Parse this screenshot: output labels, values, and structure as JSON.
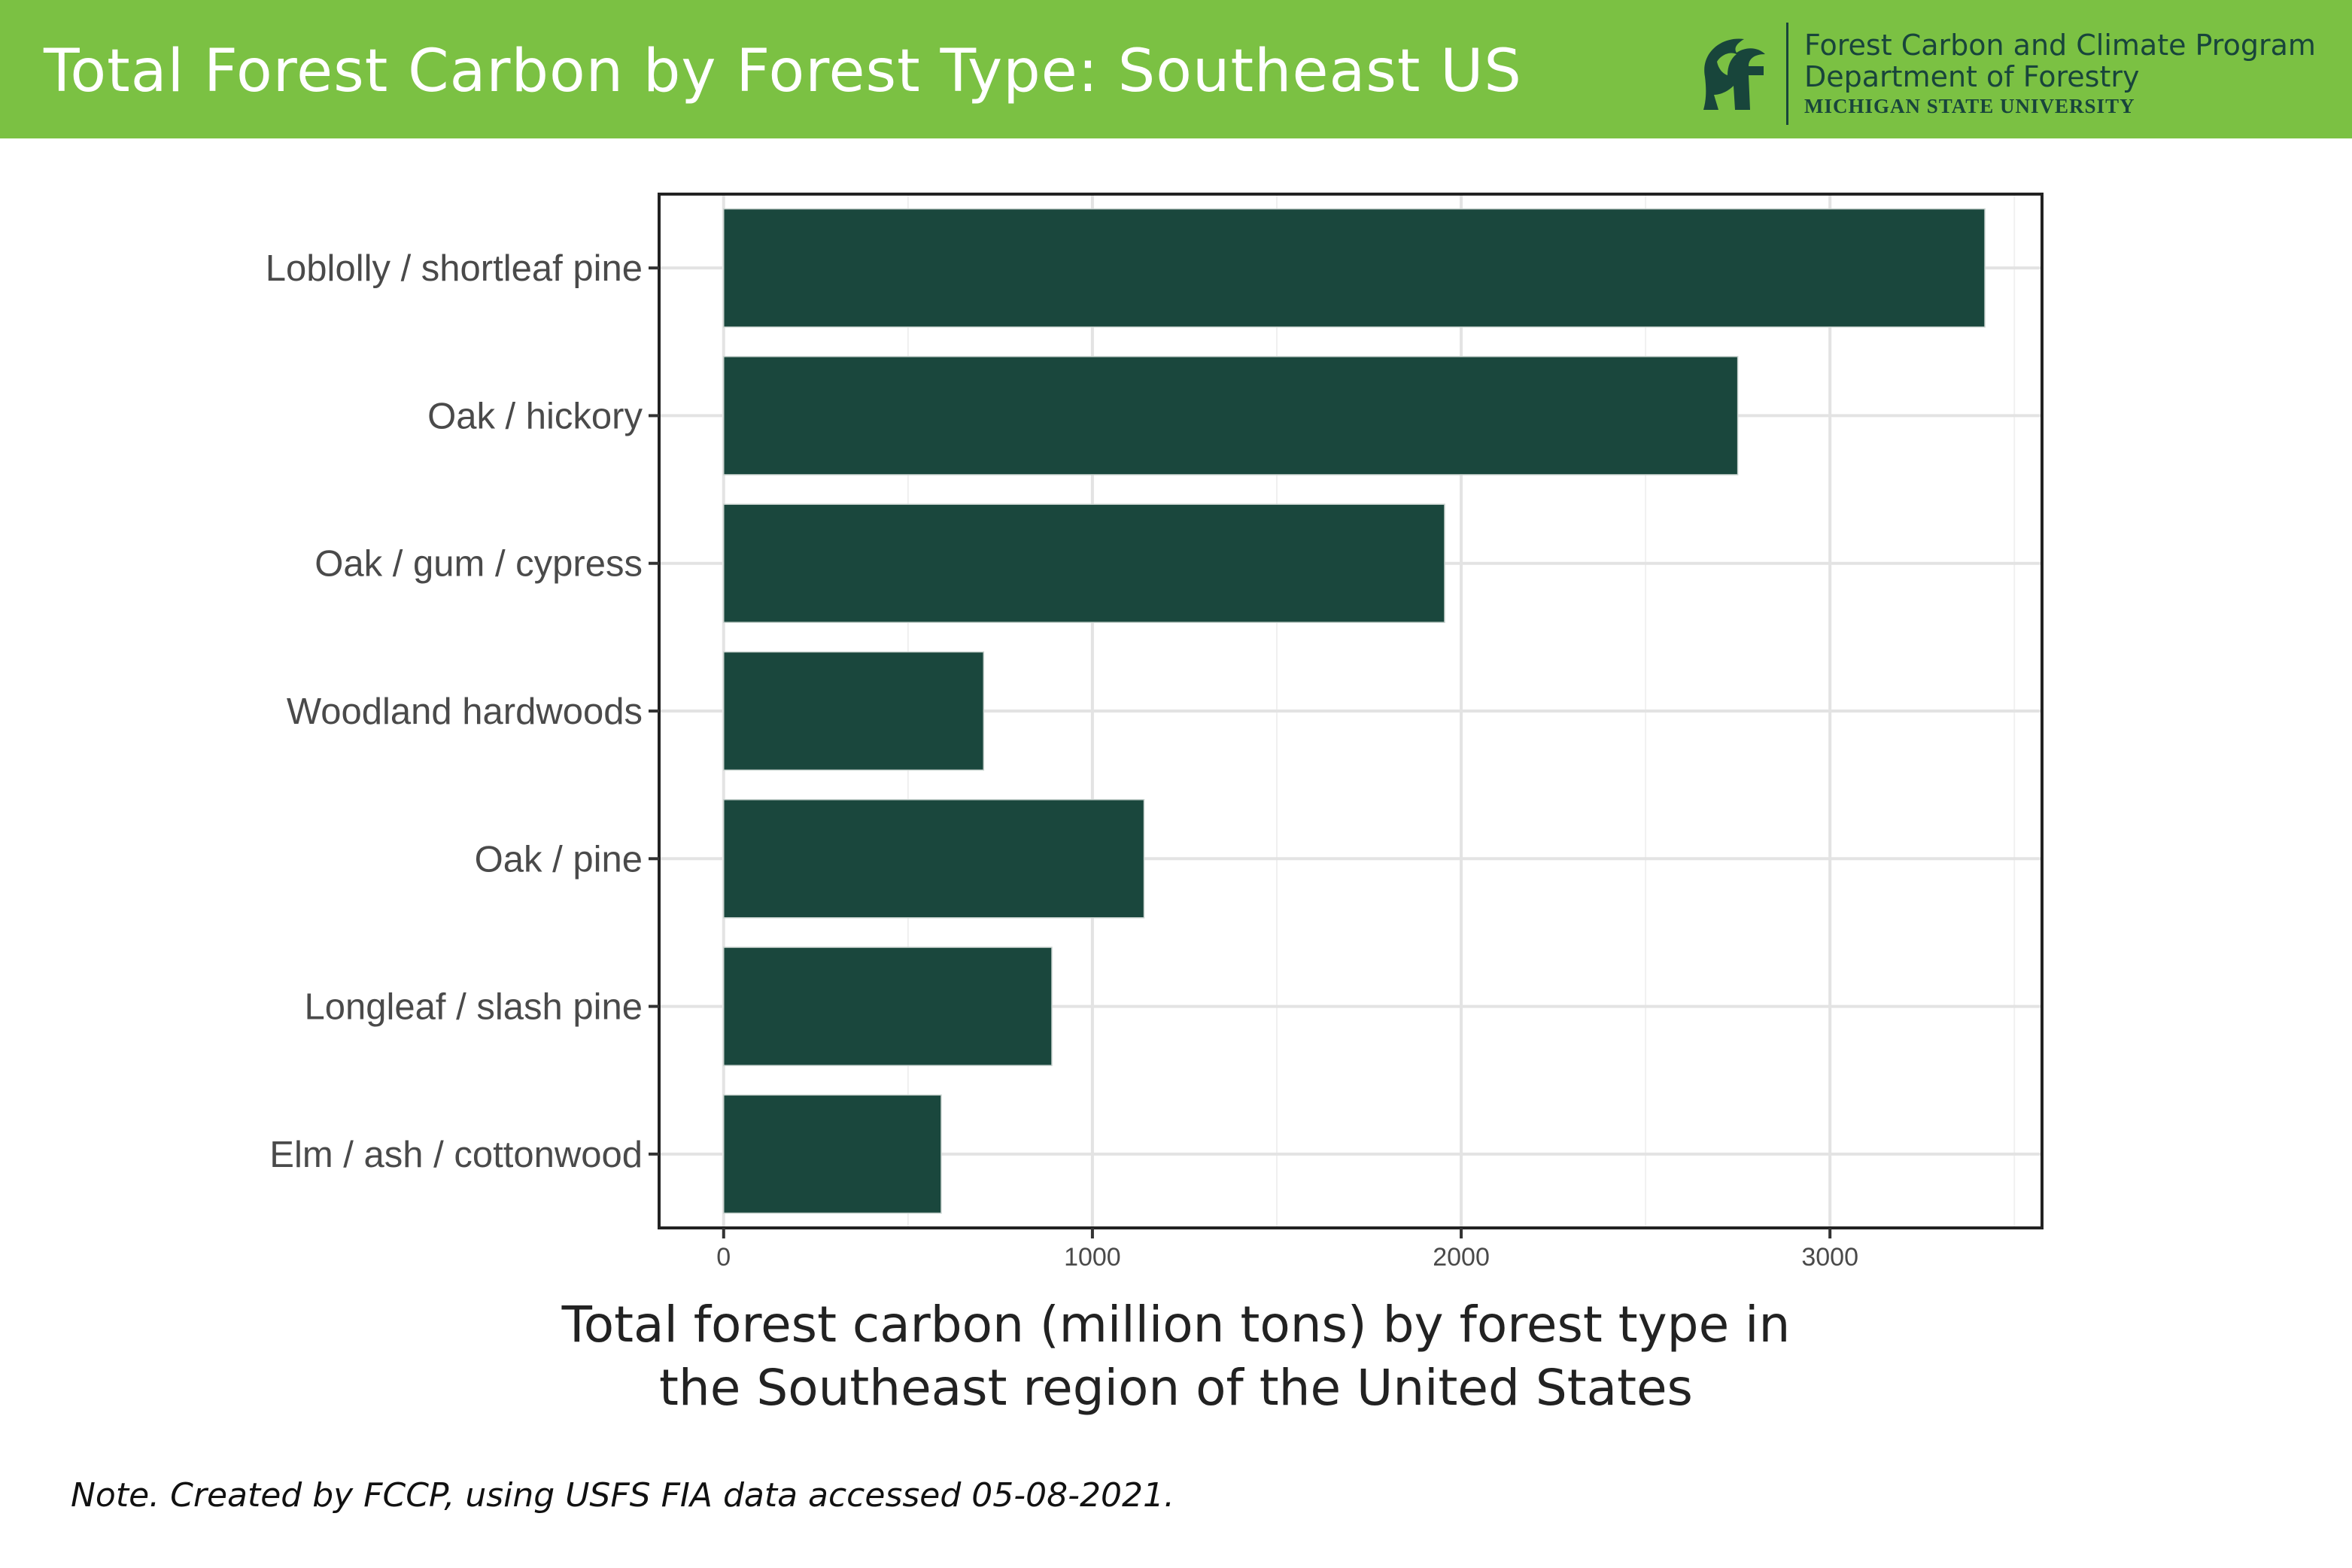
{
  "header": {
    "title": "Total Forest Carbon by Forest Type: Southeast US",
    "org_line1": "Forest Carbon and Climate Program",
    "org_line2": "Department of Forestry",
    "org_line3": "MICHIGAN STATE UNIVERSITY",
    "logo_icon": "spartan-helmet-icon"
  },
  "colors": {
    "header_bg": "#7bc143",
    "bar": "#1a473d",
    "org_text": "#18453b"
  },
  "chart_data": {
    "type": "bar",
    "orientation": "horizontal",
    "categories": [
      "Loblolly / shortleaf pine",
      "Oak / hickory",
      "Oak / gum / cypress",
      "Woodland hardwoods",
      "Oak / pine",
      "Longleaf / slash pine",
      "Elm / ash / cottonwood"
    ],
    "values": [
      3420,
      2750,
      1955,
      705,
      1140,
      890,
      590
    ],
    "xticks": [
      "0",
      "1000",
      "2000",
      "3000"
    ],
    "xlim": [
      -175,
      3575
    ],
    "grid": true,
    "xlabel": "",
    "ylabel": ""
  },
  "caption": {
    "line1": "Total forest carbon (million tons) by forest type in",
    "line2": "the Southeast region of the United States"
  },
  "note": "Note. Created by FCCP, using USFS FIA data accessed 05-08-2021."
}
